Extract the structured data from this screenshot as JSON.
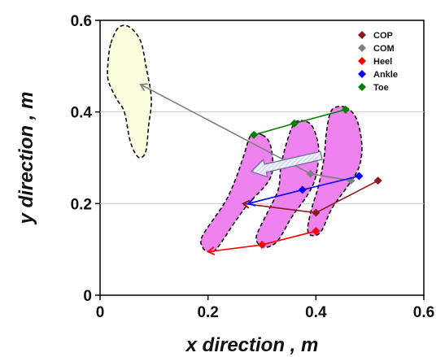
{
  "chart_data": {
    "type": "line",
    "xlabel": "x direction , m",
    "ylabel": "y direction , m",
    "xlim": [
      0,
      0.6
    ],
    "ylim": [
      0,
      0.6
    ],
    "xticks": [
      "0",
      "0.2",
      "0.4",
      "0.6"
    ],
    "yticks": [
      "0",
      "0.2",
      "0.4",
      "0.6"
    ],
    "grid": "horizontal",
    "legend_position": "top-right",
    "series": [
      {
        "name": "COP",
        "color": "#8b1a1a",
        "marker": "diamond",
        "x": [
          0.515,
          0.4,
          0.265
        ],
        "y": [
          0.25,
          0.18,
          0.2
        ],
        "arrow": true
      },
      {
        "name": "COM",
        "color": "#808080",
        "marker": "diamond",
        "x": [
          0.465,
          0.39,
          0.075
        ],
        "y": [
          0.25,
          0.265,
          0.46
        ],
        "arrow": true
      },
      {
        "name": "Heel",
        "color": "#ff0000",
        "marker": "diamond",
        "x": [
          0.4,
          0.3,
          0.2
        ],
        "y": [
          0.14,
          0.11,
          0.095
        ],
        "arrow": true
      },
      {
        "name": "Ankle",
        "color": "#0000ff",
        "marker": "diamond",
        "x": [
          0.48,
          0.375,
          0.275
        ],
        "y": [
          0.26,
          0.23,
          0.2
        ],
        "arrow": true
      },
      {
        "name": "Toe",
        "color": "#008000",
        "marker": "diamond",
        "x": [
          0.285,
          0.36,
          0.455
        ],
        "y": [
          0.35,
          0.375,
          0.405
        ],
        "arrow": false
      }
    ],
    "footprints": [
      {
        "fill": "#fdfde0",
        "points": [
          [
            0.02,
            0.55
          ],
          [
            0.035,
            0.585
          ],
          [
            0.055,
            0.585
          ],
          [
            0.075,
            0.555
          ],
          [
            0.085,
            0.5
          ],
          [
            0.095,
            0.43
          ],
          [
            0.09,
            0.37
          ],
          [
            0.085,
            0.315
          ],
          [
            0.075,
            0.3
          ],
          [
            0.065,
            0.31
          ],
          [
            0.055,
            0.34
          ],
          [
            0.045,
            0.4
          ],
          [
            0.03,
            0.43
          ],
          [
            0.015,
            0.47
          ],
          [
            0.015,
            0.51
          ]
        ]
      },
      {
        "fill": "#ee82ee",
        "points": [
          [
            0.3,
            0.35
          ],
          [
            0.28,
            0.35
          ],
          [
            0.265,
            0.3
          ],
          [
            0.25,
            0.25
          ],
          [
            0.23,
            0.2
          ],
          [
            0.19,
            0.13
          ],
          [
            0.19,
            0.105
          ],
          [
            0.2,
            0.095
          ],
          [
            0.215,
            0.1
          ],
          [
            0.25,
            0.16
          ],
          [
            0.275,
            0.2
          ],
          [
            0.31,
            0.245
          ],
          [
            0.32,
            0.28
          ],
          [
            0.315,
            0.33
          ]
        ]
      },
      {
        "fill": "#ee82ee",
        "points": [
          [
            0.38,
            0.38
          ],
          [
            0.36,
            0.375
          ],
          [
            0.345,
            0.33
          ],
          [
            0.335,
            0.28
          ],
          [
            0.33,
            0.23
          ],
          [
            0.31,
            0.18
          ],
          [
            0.29,
            0.13
          ],
          [
            0.295,
            0.11
          ],
          [
            0.31,
            0.105
          ],
          [
            0.33,
            0.12
          ],
          [
            0.355,
            0.17
          ],
          [
            0.385,
            0.22
          ],
          [
            0.4,
            0.26
          ],
          [
            0.405,
            0.32
          ],
          [
            0.395,
            0.365
          ]
        ]
      },
      {
        "fill": "#ee82ee",
        "points": [
          [
            0.455,
            0.41
          ],
          [
            0.43,
            0.405
          ],
          [
            0.42,
            0.36
          ],
          [
            0.415,
            0.3
          ],
          [
            0.405,
            0.24
          ],
          [
            0.39,
            0.18
          ],
          [
            0.385,
            0.14
          ],
          [
            0.395,
            0.13
          ],
          [
            0.41,
            0.14
          ],
          [
            0.43,
            0.19
          ],
          [
            0.46,
            0.24
          ],
          [
            0.48,
            0.28
          ],
          [
            0.485,
            0.33
          ],
          [
            0.475,
            0.385
          ]
        ]
      }
    ],
    "direction_arrow": {
      "from": [
        0.41,
        0.305
      ],
      "to": [
        0.28,
        0.27
      ]
    }
  }
}
